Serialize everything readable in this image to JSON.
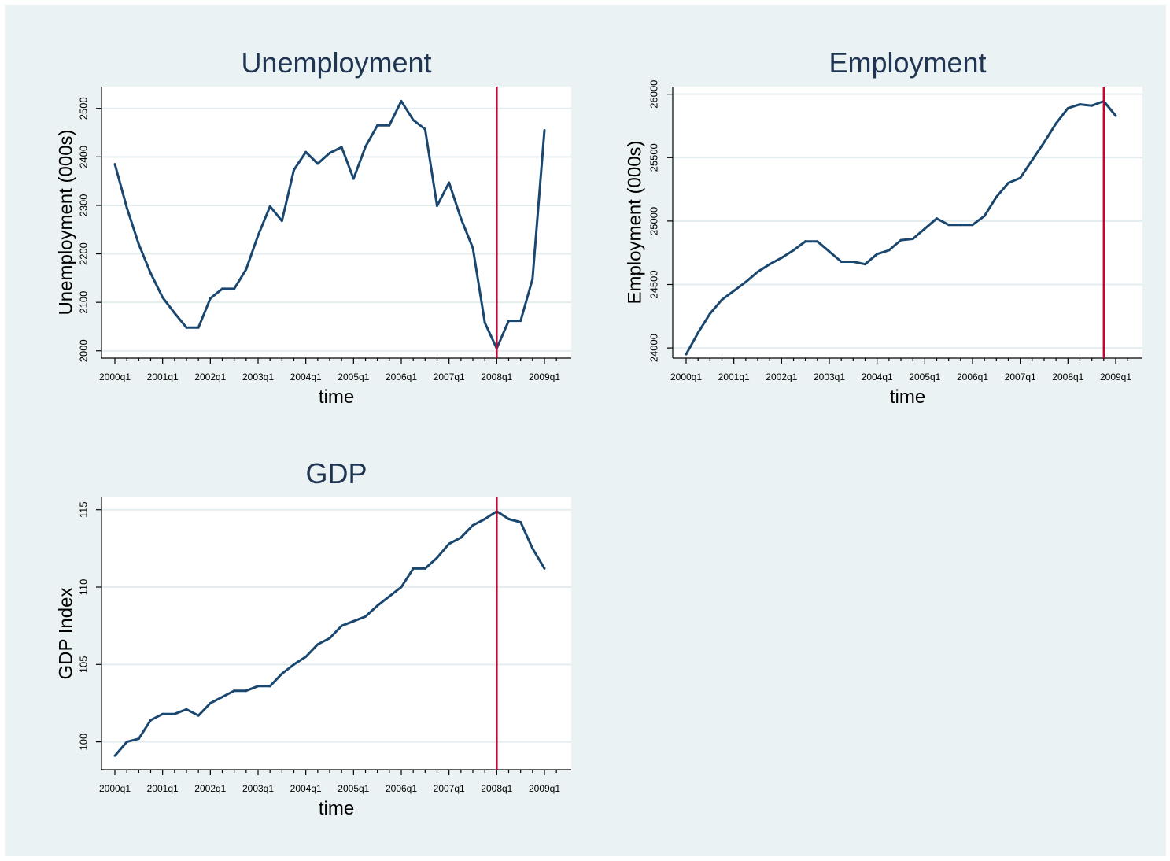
{
  "colors": {
    "background": "#eaf2f3",
    "plot_area": "#ffffff",
    "grid": "#e3ecef",
    "series": "#1a476f",
    "reference_line": "#c10534",
    "title": "#1f3552"
  },
  "chart_data": [
    {
      "type": "line",
      "title": "Unemployment",
      "xlabel": "time",
      "ylabel": "Unemployment (000s)",
      "x_ticks": [
        "2000q1",
        "2001q1",
        "2002q1",
        "2003q1",
        "2004q1",
        "2005q1",
        "2006q1",
        "2007q1",
        "2008q1",
        "2009q1"
      ],
      "y_ticks": [
        2000,
        2100,
        2200,
        2300,
        2400,
        2500
      ],
      "xlim": [
        "2000q1",
        "2009q3"
      ],
      "ylim": [
        1985,
        2545
      ],
      "grid": true,
      "reference_line_x": "2008q1",
      "series": [
        {
          "x": [
            "2000q1",
            "2000q2",
            "2000q3",
            "2000q4",
            "2001q1",
            "2001q2",
            "2001q3",
            "2001q4",
            "2002q1",
            "2002q2",
            "2002q3",
            "2002q4",
            "2003q1",
            "2003q2",
            "2003q3",
            "2003q4",
            "2004q1",
            "2004q2",
            "2004q3",
            "2004q4",
            "2005q1",
            "2005q2",
            "2005q3",
            "2005q4",
            "2006q1",
            "2006q2",
            "2006q3",
            "2006q4",
            "2007q1",
            "2007q2",
            "2007q3",
            "2007q4",
            "2008q1",
            "2008q2",
            "2008q3",
            "2008q4",
            "2009q1"
          ],
          "values": [
            2385,
            2295,
            2220,
            2160,
            2110,
            2078,
            2048,
            2048,
            2108,
            2128,
            2128,
            2168,
            2238,
            2298,
            2268,
            2373,
            2410,
            2386,
            2408,
            2420,
            2355,
            2421,
            2465,
            2465,
            2515,
            2476,
            2457,
            2299,
            2347,
            2273,
            2212,
            2058,
            2005,
            2062,
            2062,
            2148,
            2455
          ]
        }
      ]
    },
    {
      "type": "line",
      "title": "Employment",
      "xlabel": "time",
      "ylabel": "Employment (000s)",
      "x_ticks": [
        "2000q1",
        "2001q1",
        "2002q1",
        "2003q1",
        "2004q1",
        "2005q1",
        "2006q1",
        "2007q1",
        "2008q1",
        "2009q1"
      ],
      "y_ticks": [
        24000,
        24500,
        25000,
        25500,
        26000
      ],
      "xlim": [
        "2000q1",
        "2009q3"
      ],
      "ylim": [
        23920,
        26060
      ],
      "grid": true,
      "reference_line_x": "2008q4",
      "series": [
        {
          "x": [
            "2000q1",
            "2000q2",
            "2000q3",
            "2000q4",
            "2001q1",
            "2001q2",
            "2001q3",
            "2001q4",
            "2002q1",
            "2002q2",
            "2002q3",
            "2002q4",
            "2003q1",
            "2003q2",
            "2003q3",
            "2003q4",
            "2004q1",
            "2004q2",
            "2004q3",
            "2004q4",
            "2005q1",
            "2005q2",
            "2005q3",
            "2005q4",
            "2006q1",
            "2006q2",
            "2006q3",
            "2006q4",
            "2007q1",
            "2007q2",
            "2007q3",
            "2007q4",
            "2008q1",
            "2008q2",
            "2008q3",
            "2008q4",
            "2009q1"
          ],
          "values": [
            23950,
            24120,
            24270,
            24380,
            24450,
            24520,
            24600,
            24660,
            24710,
            24770,
            24840,
            24840,
            24760,
            24680,
            24680,
            24660,
            24740,
            24770,
            24850,
            24860,
            24940,
            25020,
            24970,
            24970,
            24970,
            25040,
            25190,
            25300,
            25340,
            25480,
            25620,
            25770,
            25890,
            25920,
            25910,
            25945,
            25830
          ]
        }
      ]
    },
    {
      "type": "line",
      "title": "GDP",
      "xlabel": "time",
      "ylabel": "GDP Index",
      "x_ticks": [
        "2000q1",
        "2001q1",
        "2002q1",
        "2003q1",
        "2004q1",
        "2005q1",
        "2006q1",
        "2007q1",
        "2008q1",
        "2009q1"
      ],
      "y_ticks": [
        100,
        105,
        110,
        115
      ],
      "xlim": [
        "2000q1",
        "2009q3"
      ],
      "ylim": [
        98.2,
        115.8
      ],
      "grid": true,
      "reference_line_x": "2008q1",
      "series": [
        {
          "x": [
            "2000q1",
            "2000q2",
            "2000q3",
            "2000q4",
            "2001q1",
            "2001q2",
            "2001q3",
            "2001q4",
            "2002q1",
            "2002q2",
            "2002q3",
            "2002q4",
            "2003q1",
            "2003q2",
            "2003q3",
            "2003q4",
            "2004q1",
            "2004q2",
            "2004q3",
            "2004q4",
            "2005q1",
            "2005q2",
            "2005q3",
            "2005q4",
            "2006q1",
            "2006q2",
            "2006q3",
            "2006q4",
            "2007q1",
            "2007q2",
            "2007q3",
            "2007q4",
            "2008q1",
            "2008q2",
            "2008q3",
            "2008q4",
            "2009q1"
          ],
          "values": [
            99.1,
            100.0,
            100.2,
            101.4,
            101.8,
            101.8,
            102.1,
            101.7,
            102.5,
            102.9,
            103.3,
            103.3,
            103.6,
            103.6,
            104.4,
            105.0,
            105.5,
            106.3,
            106.7,
            107.5,
            107.8,
            108.1,
            108.8,
            109.4,
            110.0,
            111.2,
            111.2,
            111.9,
            112.8,
            113.2,
            114.0,
            114.4,
            114.9,
            114.4,
            114.2,
            112.5,
            111.2
          ]
        }
      ]
    }
  ]
}
